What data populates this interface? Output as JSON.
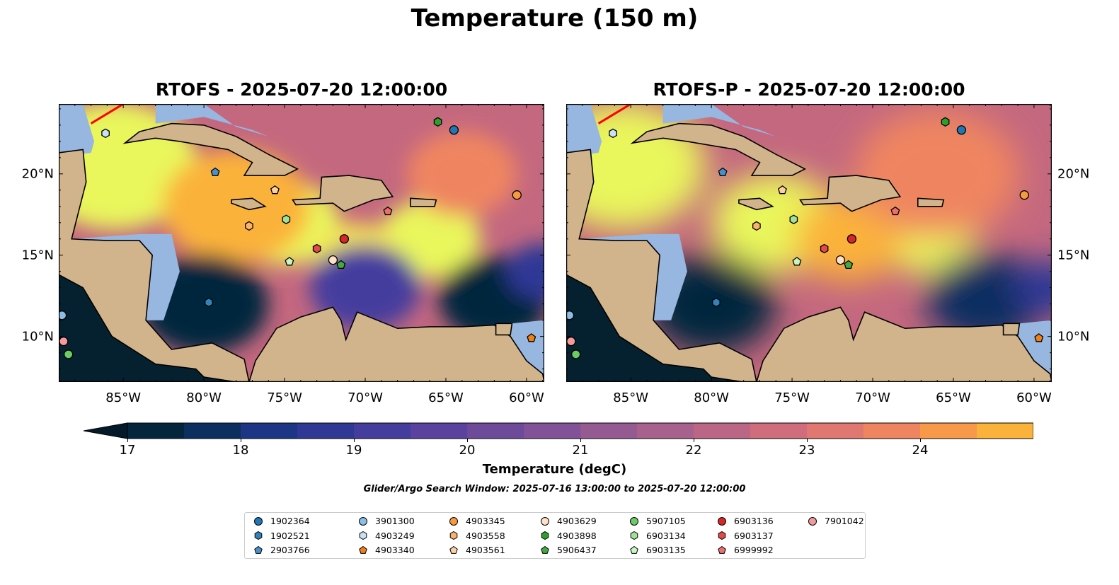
{
  "title": "Temperature (150 m)",
  "panels": [
    {
      "title": "RTOFS - 2025-07-20 12:00:00"
    },
    {
      "title": "RTOFS-P - 2025-07-20 12:00:00"
    }
  ],
  "lon_ticks": [
    "85°W",
    "80°W",
    "75°W",
    "70°W",
    "65°W",
    "60°W"
  ],
  "lat_ticks": [
    "20°N",
    "15°N",
    "10°N"
  ],
  "colorbar": {
    "label": "Temperature (degC)",
    "ticks": [
      "17",
      "18",
      "19",
      "20",
      "21",
      "22",
      "23",
      "24"
    ],
    "min": 17,
    "max": 24.5,
    "step": 0.5,
    "colors": [
      "#05253d",
      "#0d2f60",
      "#1c3584",
      "#2f3895",
      "#453d9e",
      "#5b429f",
      "#6e4a9b",
      "#815297",
      "#955a92",
      "#a8618d",
      "#bc6686",
      "#d06d7d",
      "#e17771",
      "#ef8560",
      "#f79948",
      "#fbb23a"
    ],
    "under": "#041a2a",
    "over": "#e9f65c"
  },
  "search_window": "Glider/Argo Search Window: 2025-07-16 13:00:00 to 2025-07-20 12:00:00",
  "floats": [
    {
      "id": "1902364",
      "shape": "circle",
      "color": "#1f77b4",
      "lon": -64.5,
      "lat": 22.7
    },
    {
      "id": "1902521",
      "shape": "hexagon",
      "color": "#3182bd",
      "lon": -79.7,
      "lat": 12.1
    },
    {
      "id": "2903766",
      "shape": "pentagon",
      "color": "#4a90c8",
      "lon": -79.3,
      "lat": 20.1
    },
    {
      "id": "3901300",
      "shape": "circle",
      "color": "#8bbee4",
      "lon": -88.8,
      "lat": 11.3
    },
    {
      "id": "4903249",
      "shape": "hexagon",
      "color": "#c6e2f7",
      "lon": -86.1,
      "lat": 22.5
    },
    {
      "id": "4903340",
      "shape": "pentagon",
      "color": "#f07f14",
      "lon": -59.7,
      "lat": 9.9
    },
    {
      "id": "4903345",
      "shape": "circle",
      "color": "#f79a3c",
      "lon": -60.6,
      "lat": 18.7
    },
    {
      "id": "4903558",
      "shape": "hexagon",
      "color": "#fbb26b",
      "lon": -77.2,
      "lat": 16.8
    },
    {
      "id": "4903561",
      "shape": "pentagon",
      "color": "#fdd0a2",
      "lon": -75.6,
      "lat": 19.0
    },
    {
      "id": "4903629",
      "shape": "circle",
      "color": "#fde0c5",
      "lon": -72.0,
      "lat": 14.7
    },
    {
      "id": "4903898",
      "shape": "hexagon",
      "color": "#2ca02c",
      "lon": -65.5,
      "lat": 23.2
    },
    {
      "id": "5906437",
      "shape": "pentagon",
      "color": "#41ab3f",
      "lon": -71.5,
      "lat": 14.4
    },
    {
      "id": "5907105",
      "shape": "circle",
      "color": "#6bcb66",
      "lon": -88.4,
      "lat": 8.9
    },
    {
      "id": "6903134",
      "shape": "hexagon",
      "color": "#9fe39a",
      "lon": -74.9,
      "lat": 17.2
    },
    {
      "id": "6903135",
      "shape": "pentagon",
      "color": "#c8f5c3",
      "lon": -74.7,
      "lat": 14.6
    },
    {
      "id": "6903136",
      "shape": "circle",
      "color": "#d62728",
      "lon": -71.3,
      "lat": 16.0
    },
    {
      "id": "6903137",
      "shape": "hexagon",
      "color": "#e04a48",
      "lon": -73.0,
      "lat": 15.4
    },
    {
      "id": "6999992",
      "shape": "pentagon",
      "color": "#ec6f6f",
      "lon": -68.6,
      "lat": 17.7
    },
    {
      "id": "7901042",
      "shape": "circle",
      "color": "#f59a9a",
      "lon": -88.7,
      "lat": 9.7
    }
  ]
}
